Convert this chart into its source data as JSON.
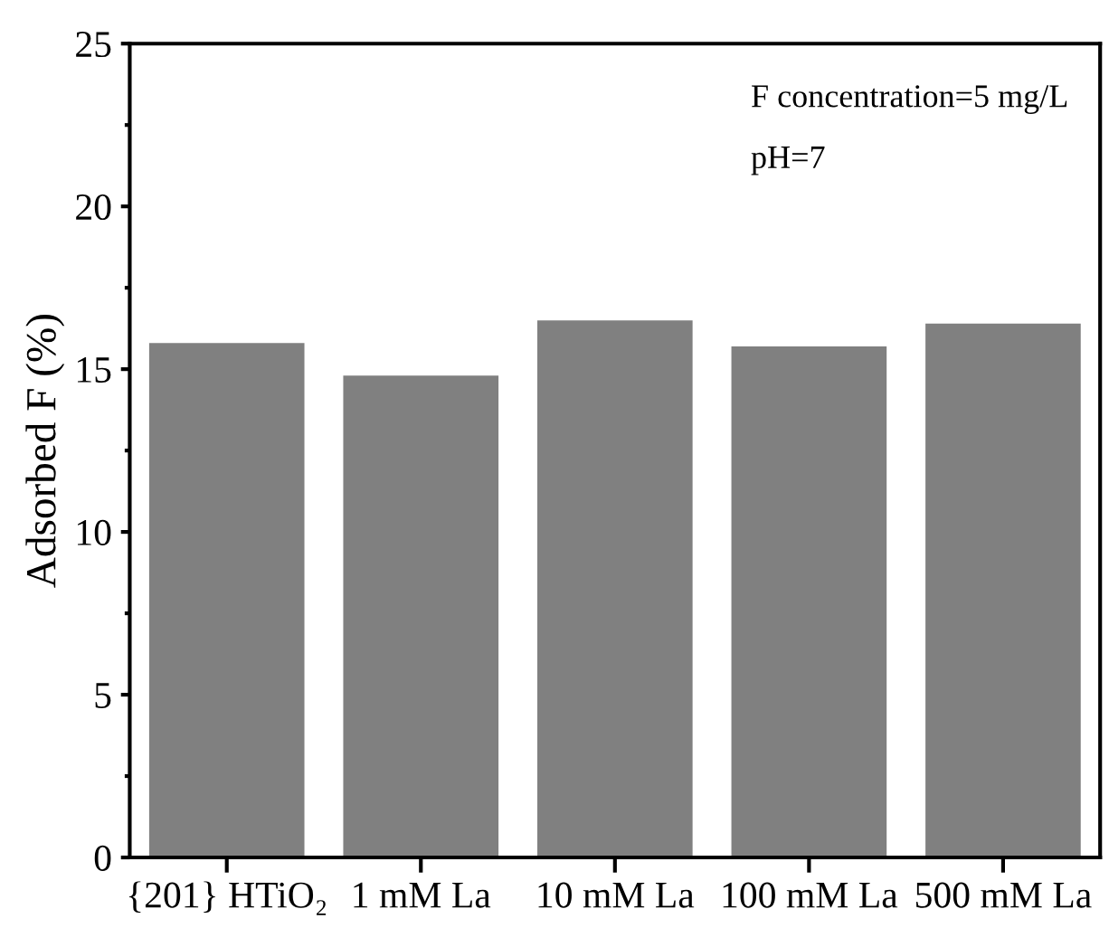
{
  "chart_data": {
    "type": "bar",
    "ylabel": "Adsorbed F (%)",
    "categories": [
      "{201} HTiO₂",
      "1 mM La",
      "10 mM La",
      "100 mM La",
      "500 mM La"
    ],
    "values": [
      15.8,
      14.8,
      16.5,
      15.7,
      16.4
    ],
    "color": "#808080",
    "ylim": [
      0,
      25
    ],
    "yticks": [
      0,
      5,
      10,
      15,
      20,
      25
    ],
    "grid": false,
    "annotations": [
      "F concentration=5 mg/L",
      "pH=7"
    ]
  }
}
